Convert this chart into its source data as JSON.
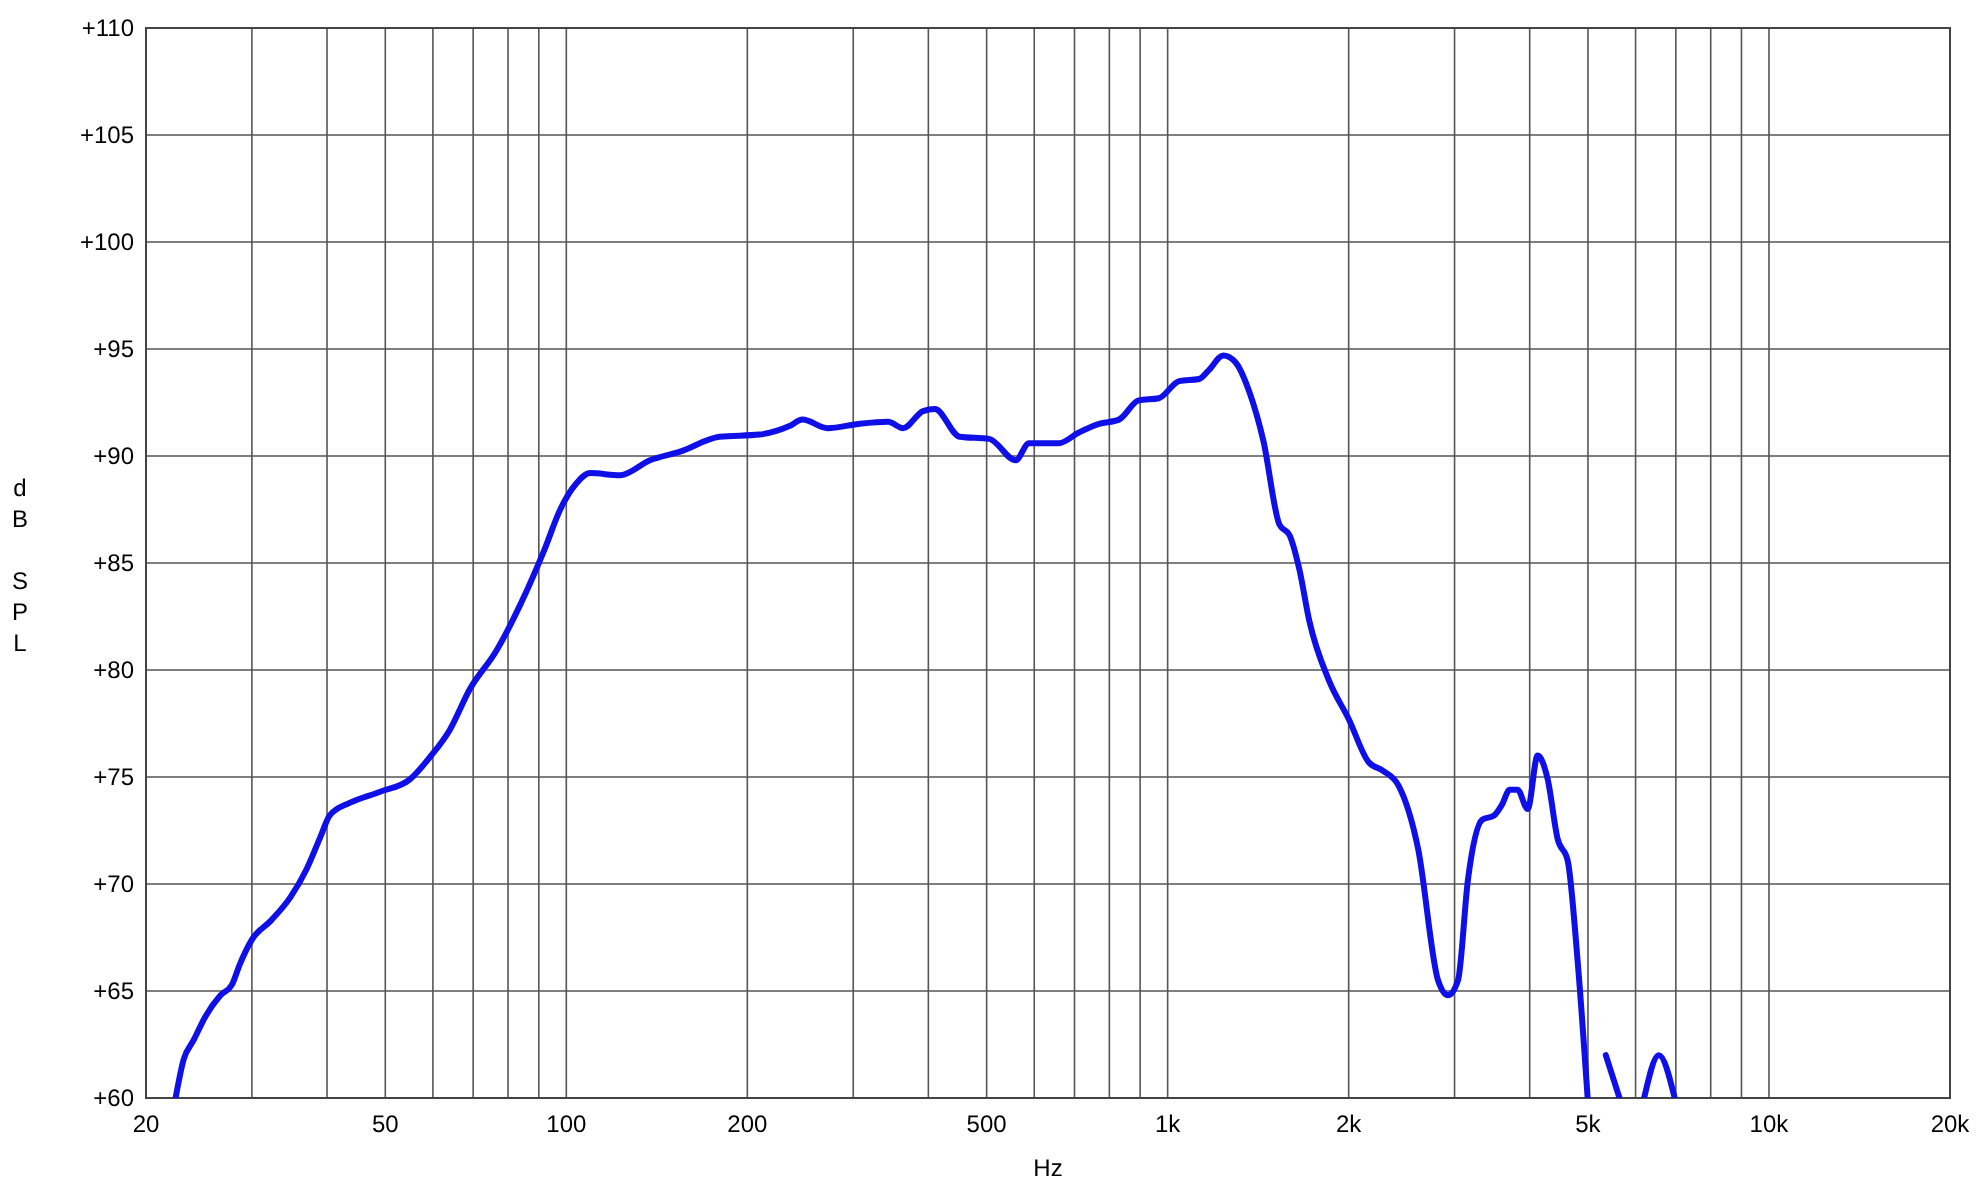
{
  "chart_data": {
    "type": "line",
    "xlabel": "Hz",
    "ylabel": "dB SPL",
    "log": "x",
    "grid": true,
    "line_style": "solid",
    "xlim": [
      20,
      20000
    ],
    "ylim": [
      60,
      110
    ],
    "xticks": [
      {
        "value": 20,
        "label": "20"
      },
      {
        "value": 30,
        "label": null
      },
      {
        "value": 40,
        "label": null
      },
      {
        "value": 50,
        "label": "50"
      },
      {
        "value": 60,
        "label": null
      },
      {
        "value": 70,
        "label": null
      },
      {
        "value": 80,
        "label": null
      },
      {
        "value": 90,
        "label": null
      },
      {
        "value": 100,
        "label": "100"
      },
      {
        "value": 200,
        "label": "200"
      },
      {
        "value": 300,
        "label": null
      },
      {
        "value": 400,
        "label": null
      },
      {
        "value": 500,
        "label": "500"
      },
      {
        "value": 600,
        "label": null
      },
      {
        "value": 700,
        "label": null
      },
      {
        "value": 800,
        "label": null
      },
      {
        "value": 900,
        "label": null
      },
      {
        "value": 1000,
        "label": "1k"
      },
      {
        "value": 2000,
        "label": "2k"
      },
      {
        "value": 3000,
        "label": null
      },
      {
        "value": 4000,
        "label": null
      },
      {
        "value": 5000,
        "label": "5k"
      },
      {
        "value": 6000,
        "label": null
      },
      {
        "value": 7000,
        "label": null
      },
      {
        "value": 8000,
        "label": null
      },
      {
        "value": 9000,
        "label": null
      },
      {
        "value": 10000,
        "label": "10k"
      },
      {
        "value": 20000,
        "label": "20k"
      }
    ],
    "yticks": [
      {
        "value": 60,
        "label": "+60"
      },
      {
        "value": 65,
        "label": "+65"
      },
      {
        "value": 70,
        "label": "+70"
      },
      {
        "value": 75,
        "label": "+75"
      },
      {
        "value": 80,
        "label": "+80"
      },
      {
        "value": 85,
        "label": "+85"
      },
      {
        "value": 90,
        "label": "+90"
      },
      {
        "value": 95,
        "label": "+95"
      },
      {
        "value": 100,
        "label": "+100"
      },
      {
        "value": 105,
        "label": "+105"
      },
      {
        "value": 110,
        "label": "+110"
      }
    ],
    "series": [
      {
        "color": "#0f0fe8",
        "x": [
          22.4,
          23.1,
          24,
          25.1,
          26.6,
          27.8,
          28.6,
          30,
          32.3,
          34.8,
          37,
          39,
          40.4,
          43.7,
          48.9,
          55,
          59.2,
          64,
          69.1,
          76.5,
          84,
          91.9,
          97.7,
          103.8,
          109.6,
          122.9,
          137.8,
          154.6,
          179.8,
          209.5,
          235,
          247,
          272,
          306,
          343,
          363,
          392,
          410,
          451,
          505,
          559,
          588,
          659,
          712,
          769,
          830,
          895,
          967,
          1045,
          1128,
          1170,
          1237,
          1295,
          1367,
          1443,
          1534,
          1595,
          1656,
          1720,
          1855,
          2001,
          2158,
          2278,
          2421,
          2611,
          2816,
          2926,
          3040,
          3158,
          3335,
          3489,
          3596,
          3706,
          3819,
          3969,
          4124,
          4285,
          4452,
          4626,
          4806,
          4994,
          5100,
          5353,
          5642,
          5900,
          6200,
          6560,
          6970
        ],
        "values": [
          60,
          61.8,
          62.7,
          63.8,
          64.8,
          65.3,
          66.2,
          67.4,
          68.3,
          69.4,
          70.7,
          72.2,
          73.2,
          73.8,
          74.3,
          74.9,
          75.9,
          77.2,
          79.1,
          80.9,
          83.1,
          85.6,
          87.5,
          88.7,
          89.2,
          89.1,
          89.8,
          90.2,
          90.9,
          91,
          91.4,
          91.7,
          91.3,
          91.5,
          91.6,
          91.3,
          92.1,
          92.2,
          90.9,
          90.8,
          89.8,
          90.6,
          90.6,
          91.1,
          91.5,
          91.7,
          92.6,
          92.7,
          93.5,
          93.6,
          94,
          94.7,
          94.4,
          93,
          90.7,
          86.8,
          86.3,
          84.7,
          82.3,
          79.5,
          77.7,
          75.7,
          75.3,
          74.6,
          71.6,
          65.5,
          64.8,
          65.5,
          70.2,
          73,
          73.2,
          73.7,
          74.4,
          74.4,
          73.5,
          76,
          74.9,
          72.1,
          71.1,
          66.4,
          60,
          null,
          62,
          60,
          null,
          60,
          62,
          60
        ]
      }
    ]
  }
}
